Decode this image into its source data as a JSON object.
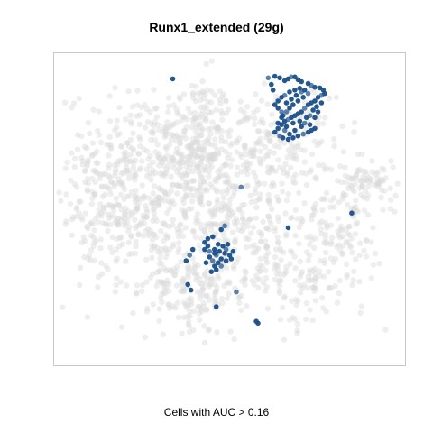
{
  "chart_data": {
    "type": "scatter",
    "title": "Runx1_extended (29g)",
    "xlabel": "Cells with AUC > 0.16",
    "ylabel": "",
    "grid": false,
    "colors": {
      "background_cells": "#d9d9d9",
      "highlight_cells": "#1a4f8a",
      "frame": "#c8c8c8"
    },
    "series": [
      {
        "role": "background",
        "clusters": [
          {
            "cx": 40,
            "cy": 71,
            "sx": 5.5,
            "sy": 11,
            "n": 240
          },
          {
            "cx": 61,
            "cy": 70,
            "sx": 9,
            "sy": 8,
            "n": 230
          },
          {
            "cx": 22,
            "cy": 66,
            "sx": 9,
            "sy": 11,
            "n": 200
          },
          {
            "cx": 15,
            "cy": 45,
            "sx": 8,
            "sy": 12,
            "n": 160
          },
          {
            "cx": 30,
            "cy": 50,
            "sx": 9,
            "sy": 11,
            "n": 180
          },
          {
            "cx": 47,
            "cy": 50,
            "sx": 4,
            "sy": 8,
            "n": 80
          },
          {
            "cx": 58,
            "cy": 45,
            "sx": 6,
            "sy": 8,
            "n": 110
          },
          {
            "cx": 45,
            "cy": 27,
            "sx": 8,
            "sy": 7,
            "n": 110
          },
          {
            "cx": 69,
            "cy": 27,
            "sx": 8,
            "sy": 8,
            "n": 110
          },
          {
            "cx": 82,
            "cy": 46,
            "sx": 6,
            "sy": 12,
            "n": 140
          },
          {
            "cx": 90,
            "cy": 58,
            "sx": 4,
            "sy": 3,
            "n": 60
          },
          {
            "cx": 40,
            "cy": 22,
            "sx": 5,
            "sy": 6,
            "n": 50
          },
          {
            "cx": 33,
            "cy": 27,
            "sx": 6,
            "sy": 6,
            "n": 40
          }
        ]
      },
      {
        "role": "highlight",
        "points": [
          [
            61.0,
            92.1
          ],
          [
            62.9,
            92.6
          ],
          [
            64.3,
            92.1
          ],
          [
            65.7,
            91.2
          ],
          [
            66.7,
            91.8
          ],
          [
            67.6,
            92.4
          ],
          [
            68.6,
            92.4
          ],
          [
            69.5,
            91.5
          ],
          [
            70.5,
            90.9
          ],
          [
            72.4,
            90.3
          ],
          [
            73.3,
            89.7
          ],
          [
            74.3,
            89.1
          ],
          [
            75.7,
            88.9
          ],
          [
            76.7,
            88.2
          ],
          [
            77.1,
            87.1
          ],
          [
            76.2,
            86.5
          ],
          [
            75.2,
            85.9
          ],
          [
            74.3,
            84.7
          ],
          [
            73.3,
            84.1
          ],
          [
            72.4,
            83.5
          ],
          [
            71.4,
            82.4
          ],
          [
            70.5,
            81.2
          ],
          [
            69.5,
            80.6
          ],
          [
            68.6,
            80.0
          ],
          [
            67.6,
            79.4
          ],
          [
            66.7,
            78.8
          ],
          [
            65.7,
            78.2
          ],
          [
            64.8,
            77.1
          ],
          [
            63.8,
            75.9
          ],
          [
            62.9,
            74.7
          ],
          [
            64.3,
            73.5
          ],
          [
            65.2,
            72.9
          ],
          [
            66.7,
            72.4
          ],
          [
            68.1,
            72.9
          ],
          [
            69.5,
            73.5
          ],
          [
            71.0,
            74.1
          ],
          [
            72.4,
            74.7
          ],
          [
            73.3,
            75.3
          ],
          [
            74.3,
            75.9
          ],
          [
            72.9,
            77.1
          ],
          [
            71.4,
            77.6
          ],
          [
            70.0,
            78.2
          ],
          [
            68.1,
            77.6
          ],
          [
            66.2,
            76.5
          ],
          [
            64.8,
            79.4
          ],
          [
            66.2,
            81.2
          ],
          [
            67.1,
            82.4
          ],
          [
            68.1,
            83.5
          ],
          [
            69.5,
            84.7
          ],
          [
            71.0,
            85.9
          ],
          [
            72.4,
            87.1
          ],
          [
            71.4,
            88.2
          ],
          [
            70.0,
            88.8
          ],
          [
            68.6,
            88.2
          ],
          [
            67.1,
            87.6
          ],
          [
            65.7,
            86.5
          ],
          [
            64.8,
            85.9
          ],
          [
            63.8,
            84.7
          ],
          [
            62.9,
            83.5
          ],
          [
            63.8,
            82.4
          ],
          [
            64.8,
            81.2
          ],
          [
            65.2,
            80.0
          ],
          [
            66.2,
            84.1
          ],
          [
            67.6,
            85.3
          ],
          [
            69.0,
            86.5
          ],
          [
            70.5,
            87.6
          ],
          [
            73.8,
            81.8
          ],
          [
            74.8,
            82.9
          ],
          [
            75.2,
            81.2
          ],
          [
            74.3,
            79.4
          ],
          [
            72.9,
            80.0
          ],
          [
            71.9,
            79.4
          ],
          [
            70.5,
            76.5
          ],
          [
            68.6,
            75.3
          ],
          [
            67.1,
            74.1
          ],
          [
            65.7,
            75.3
          ],
          [
            63.8,
            77.6
          ],
          [
            76.2,
            84.1
          ],
          [
            62.4,
            88.2
          ],
          [
            61.9,
            90.0
          ],
          [
            48.6,
            44.7
          ],
          [
            47.6,
            43.5
          ],
          [
            45.2,
            41.2
          ],
          [
            43.8,
            38.2
          ],
          [
            42.9,
            37.1
          ],
          [
            44.3,
            36.5
          ],
          [
            45.7,
            37.1
          ],
          [
            46.7,
            38.8
          ],
          [
            48.1,
            38.2
          ],
          [
            49.5,
            38.8
          ],
          [
            49.0,
            37.1
          ],
          [
            48.6,
            35.9
          ],
          [
            47.6,
            34.1
          ],
          [
            46.7,
            32.9
          ],
          [
            45.7,
            31.8
          ],
          [
            45.2,
            33.5
          ],
          [
            44.3,
            34.7
          ],
          [
            43.3,
            32.9
          ],
          [
            44.8,
            30.0
          ],
          [
            46.2,
            30.6
          ],
          [
            47.6,
            31.8
          ],
          [
            49.0,
            33.5
          ],
          [
            50.0,
            35.3
          ],
          [
            43.8,
            40.6
          ],
          [
            42.9,
            39.4
          ],
          [
            46.2,
            35.3
          ],
          [
            47.1,
            36.5
          ],
          [
            45.7,
            35.9
          ],
          [
            51.0,
            36.5
          ],
          [
            50.5,
            34.1
          ],
          [
            38.6,
            35.3
          ],
          [
            37.6,
            33.5
          ],
          [
            39.5,
            37.1
          ],
          [
            39.0,
            24.1
          ],
          [
            38.1,
            25.9
          ],
          [
            51.9,
            23.5
          ],
          [
            58.1,
            13.5
          ],
          [
            57.6,
            14.1
          ],
          [
            46.2,
            18.8
          ],
          [
            33.8,
            91.8
          ],
          [
            53.3,
            57.1
          ],
          [
            66.7,
            44.1
          ],
          [
            84.8,
            48.8
          ]
        ]
      }
    ]
  }
}
